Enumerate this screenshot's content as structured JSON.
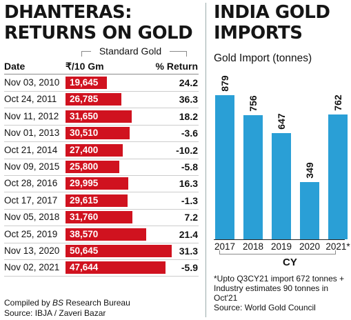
{
  "left": {
    "title_line1": "DHANTERAS:",
    "title_line2": "RETURNS ON GOLD",
    "group_label": "Standard Gold",
    "col_date": "Date",
    "col_price": "₹/10 Gm",
    "col_return": "% Return",
    "footer_line1_prefix": "Compiled by ",
    "footer_line1_italic": "BS",
    "footer_line1_suffix": " Research Bureau",
    "footer_line2": "Source: IBJA / Zaveri Bazar",
    "bar_color": "#d0121f"
  },
  "right": {
    "title_line1": "INDIA GOLD",
    "title_line2": "IMPORTS",
    "subtitle": "Gold Import (tonnes)",
    "cy_label": "CY",
    "note_line1": "*Upto Q3CY21 import 672 tonnes +",
    "note_line2": "Industry estimates 90 tonnes in",
    "note_line3": "Oct'21",
    "note_line4": "Source: World Gold Council",
    "bar_color": "#2a9fd6"
  },
  "chart_data": [
    {
      "type": "table",
      "title": "DHANTERAS: RETURNS ON GOLD",
      "columns": [
        "Date",
        "₹/10 Gm",
        "% Return"
      ],
      "rows": [
        {
          "date": "Nov 03, 2010",
          "price": 19645,
          "price_label": "19,645",
          "ret": "24.2"
        },
        {
          "date": "Oct 24, 2011",
          "price": 26785,
          "price_label": "26,785",
          "ret": "36.3"
        },
        {
          "date": "Nov 11, 2012",
          "price": 31650,
          "price_label": "31,650",
          "ret": "18.2"
        },
        {
          "date": "Nov 01, 2013",
          "price": 30510,
          "price_label": "30,510",
          "ret": "-3.6"
        },
        {
          "date": "Oct 21, 2014",
          "price": 27400,
          "price_label": "27,400",
          "ret": "-10.2"
        },
        {
          "date": "Nov 09, 2015",
          "price": 25800,
          "price_label": "25,800",
          "ret": "-5.8"
        },
        {
          "date": "Oct 28, 2016",
          "price": 29995,
          "price_label": "29,995",
          "ret": "16.3"
        },
        {
          "date": "Oct 17, 2017",
          "price": 29615,
          "price_label": "29,615",
          "ret": "-1.3"
        },
        {
          "date": "Nov 05, 2018",
          "price": 31760,
          "price_label": "31,760",
          "ret": "7.2"
        },
        {
          "date": "Oct 25, 2019",
          "price": 38570,
          "price_label": "38,570",
          "ret": "21.4"
        },
        {
          "date": "Nov 13, 2020",
          "price": 50645,
          "price_label": "50,645",
          "ret": "31.3"
        },
        {
          "date": "Nov 02, 2021",
          "price": 47644,
          "price_label": "47,644",
          "ret": "-5.9"
        }
      ]
    },
    {
      "type": "bar",
      "title": "INDIA GOLD IMPORTS",
      "ylabel": "Gold Import (tonnes)",
      "xlabel": "CY",
      "categories": [
        "2017",
        "2018",
        "2019",
        "2020",
        "2021*"
      ],
      "values": [
        879,
        756,
        647,
        349,
        762
      ],
      "ylim": [
        0,
        900
      ]
    }
  ]
}
